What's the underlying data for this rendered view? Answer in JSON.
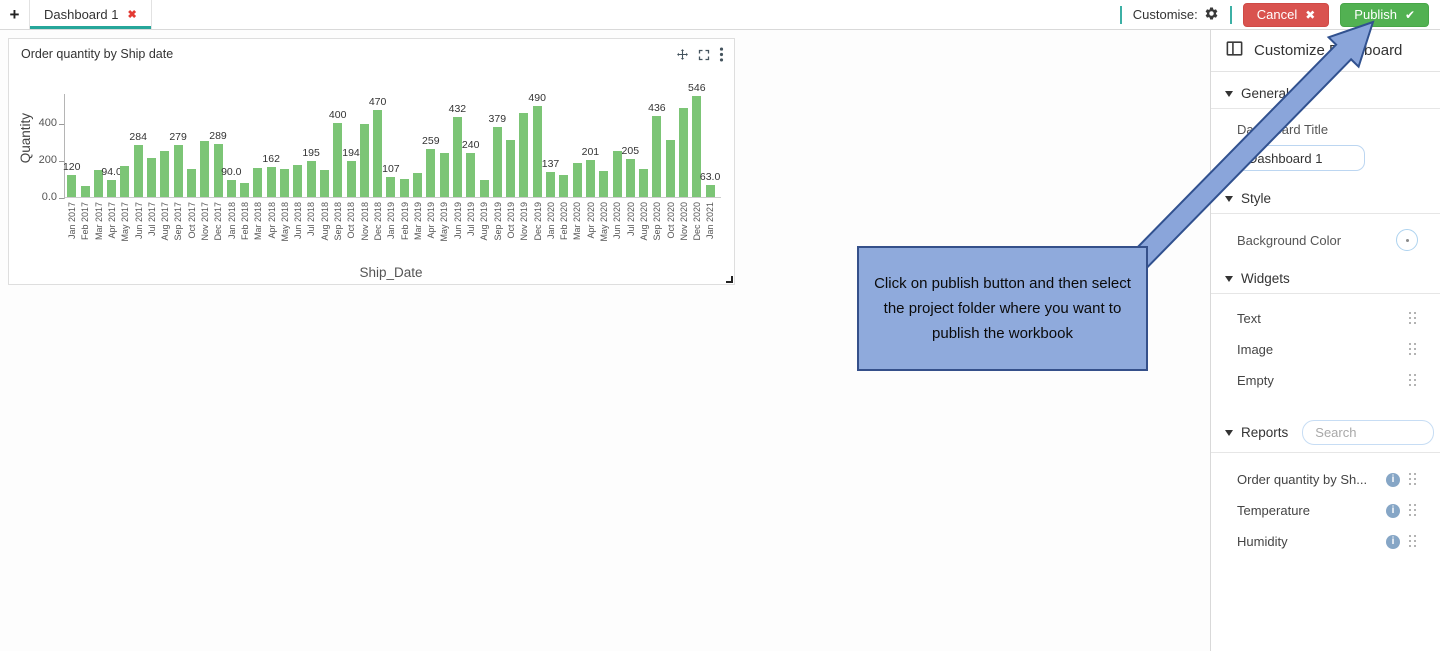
{
  "tab_bar": {
    "add_label": "+",
    "tabs": [
      {
        "label": "Dashboard 1",
        "close_icon": "✖",
        "active": true
      }
    ],
    "customise_label": "Customise:",
    "cancel": {
      "label": "Cancel",
      "icon": "✖"
    },
    "publish": {
      "label": "Publish",
      "icon": "✔"
    }
  },
  "chart_panel": {
    "title": "Order quantity by Ship date"
  },
  "chart_data": {
    "type": "bar",
    "title": "Order quantity by Ship date",
    "xlabel": "Ship_Date",
    "ylabel": "Quantity",
    "ylim": [
      0,
      560
    ],
    "grid": false,
    "legend": false,
    "bar_color": "#7cc576",
    "y_ticks": [
      {
        "label": "400",
        "value": 400
      },
      {
        "label": "200",
        "value": 200
      },
      {
        "label": "0.0",
        "value": 0
      }
    ],
    "categories": [
      "Jan 2017",
      "Feb 2017",
      "Mar 2017",
      "Apr 2017",
      "May 2017",
      "Jun 2017",
      "Jul 2017",
      "Aug 2017",
      "Sep 2017",
      "Oct 2017",
      "Nov 2017",
      "Dec 2017",
      "Jan 2018",
      "Feb 2018",
      "Mar 2018",
      "Apr 2018",
      "May 2018",
      "Jun 2018",
      "Jul 2018",
      "Aug 2018",
      "Sep 2018",
      "Oct 2018",
      "Nov 2018",
      "Dec 2018",
      "Jan 2019",
      "Feb 2019",
      "Mar 2019",
      "Apr 2019",
      "May 2019",
      "Jun 2019",
      "Jul 2019",
      "Aug 2019",
      "Sep 2019",
      "Oct 2019",
      "Nov 2019",
      "Dec 2019",
      "Jan 2020",
      "Feb 2020",
      "Mar 2020",
      "Apr 2020",
      "May 2020",
      "Jun 2020",
      "Jul 2020",
      "Aug 2020",
      "Sep 2020",
      "Oct 2020",
      "Nov 2020",
      "Dec 2020",
      "Jan 2021"
    ],
    "values": [
      120,
      60,
      145,
      94,
      170,
      284,
      210,
      250,
      279,
      150,
      305,
      289,
      90,
      75,
      155,
      162,
      150,
      175,
      195,
      145,
      400,
      194,
      395,
      470,
      107,
      95,
      130,
      259,
      240,
      432,
      240,
      90,
      379,
      310,
      455,
      490,
      137,
      120,
      185,
      201,
      140,
      250,
      205,
      150,
      436,
      310,
      480,
      546,
      63
    ],
    "point_labels": [
      "120",
      null,
      null,
      "94.0",
      null,
      "284",
      null,
      null,
      "279",
      null,
      null,
      "289",
      "90.0",
      null,
      null,
      "162",
      null,
      null,
      "195",
      null,
      "400",
      "194",
      null,
      "470",
      "107",
      null,
      null,
      "259",
      null,
      "432",
      "240",
      null,
      "379",
      null,
      null,
      "490",
      "137",
      null,
      null,
      "201",
      null,
      null,
      "205",
      null,
      "436",
      null,
      null,
      "546",
      "63.0"
    ]
  },
  "sidebar": {
    "header": {
      "title": "Customize Dashboard"
    },
    "general": {
      "label": "General",
      "title_label": "Dashboard Title",
      "title_value": "Dashboard 1"
    },
    "style": {
      "label": "Style",
      "background_color_label": "Background Color"
    },
    "widgets": {
      "label": "Widgets",
      "items": [
        "Text",
        "Image",
        "Empty"
      ]
    },
    "reports": {
      "label": "Reports",
      "search_placeholder": "Search",
      "info_glyph": "i",
      "items": [
        "Order quantity by Sh...",
        "Temperature",
        "Humidity"
      ]
    }
  },
  "callout": {
    "text": "Click on publish button and then select the project folder where you want to publish the workbook"
  },
  "colors": {
    "accent_teal": "#26a69a",
    "cancel_red": "#d9534f",
    "publish_green": "#52b152",
    "bar_green": "#7cc576",
    "callout_fill": "#8faadc",
    "callout_border": "#35508a"
  }
}
